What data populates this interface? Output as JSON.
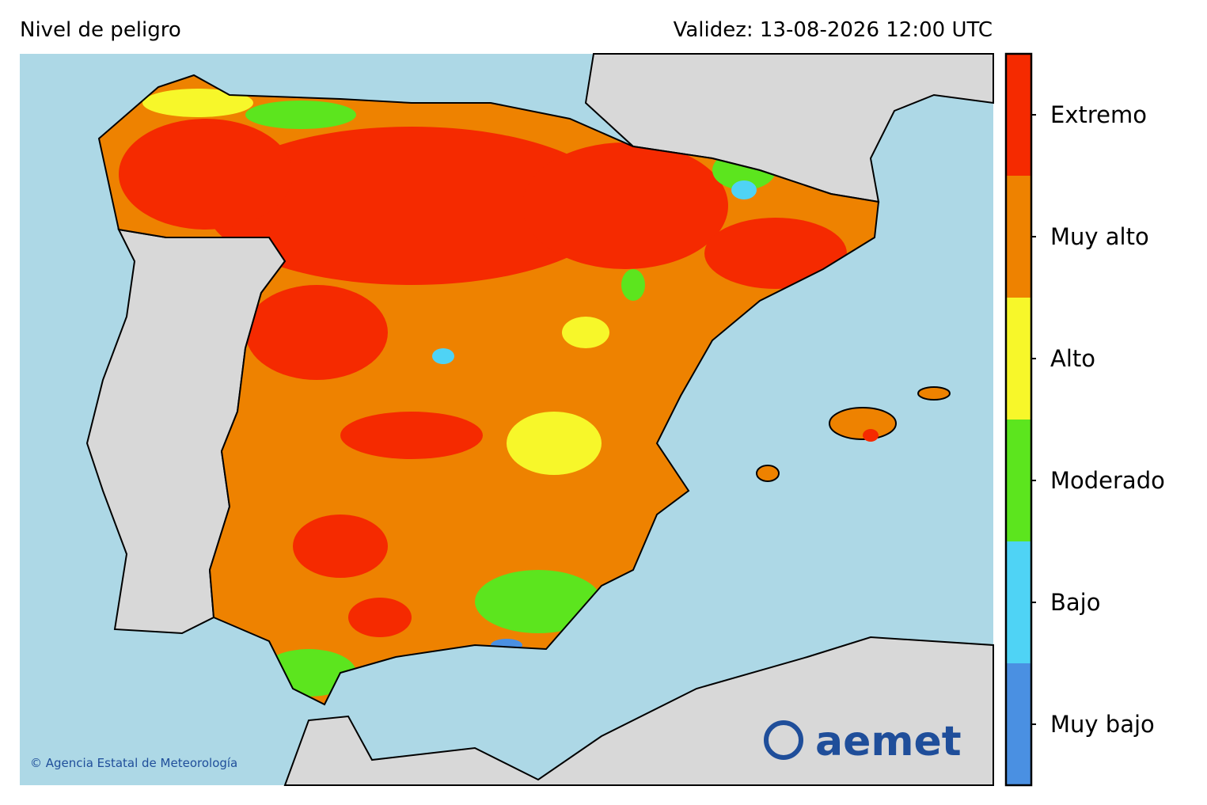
{
  "header": {
    "title": "Nivel de peligro",
    "validity": "Validez: 13-08-2026 12:00 UTC"
  },
  "legend": {
    "levels": [
      {
        "label": "Muy bajo",
        "color": "#4a90e2"
      },
      {
        "label": "Bajo",
        "color": "#4fd3f5"
      },
      {
        "label": "Moderado",
        "color": "#5ce51e"
      },
      {
        "label": "Alto",
        "color": "#f7f72a"
      },
      {
        "label": "Muy alto",
        "color": "#ee8200"
      },
      {
        "label": "Extremo",
        "color": "#f52a00"
      }
    ]
  },
  "footer": {
    "copyright": "© Agencia Estatal de Meteorología"
  },
  "logo": {
    "text": "aemet"
  }
}
